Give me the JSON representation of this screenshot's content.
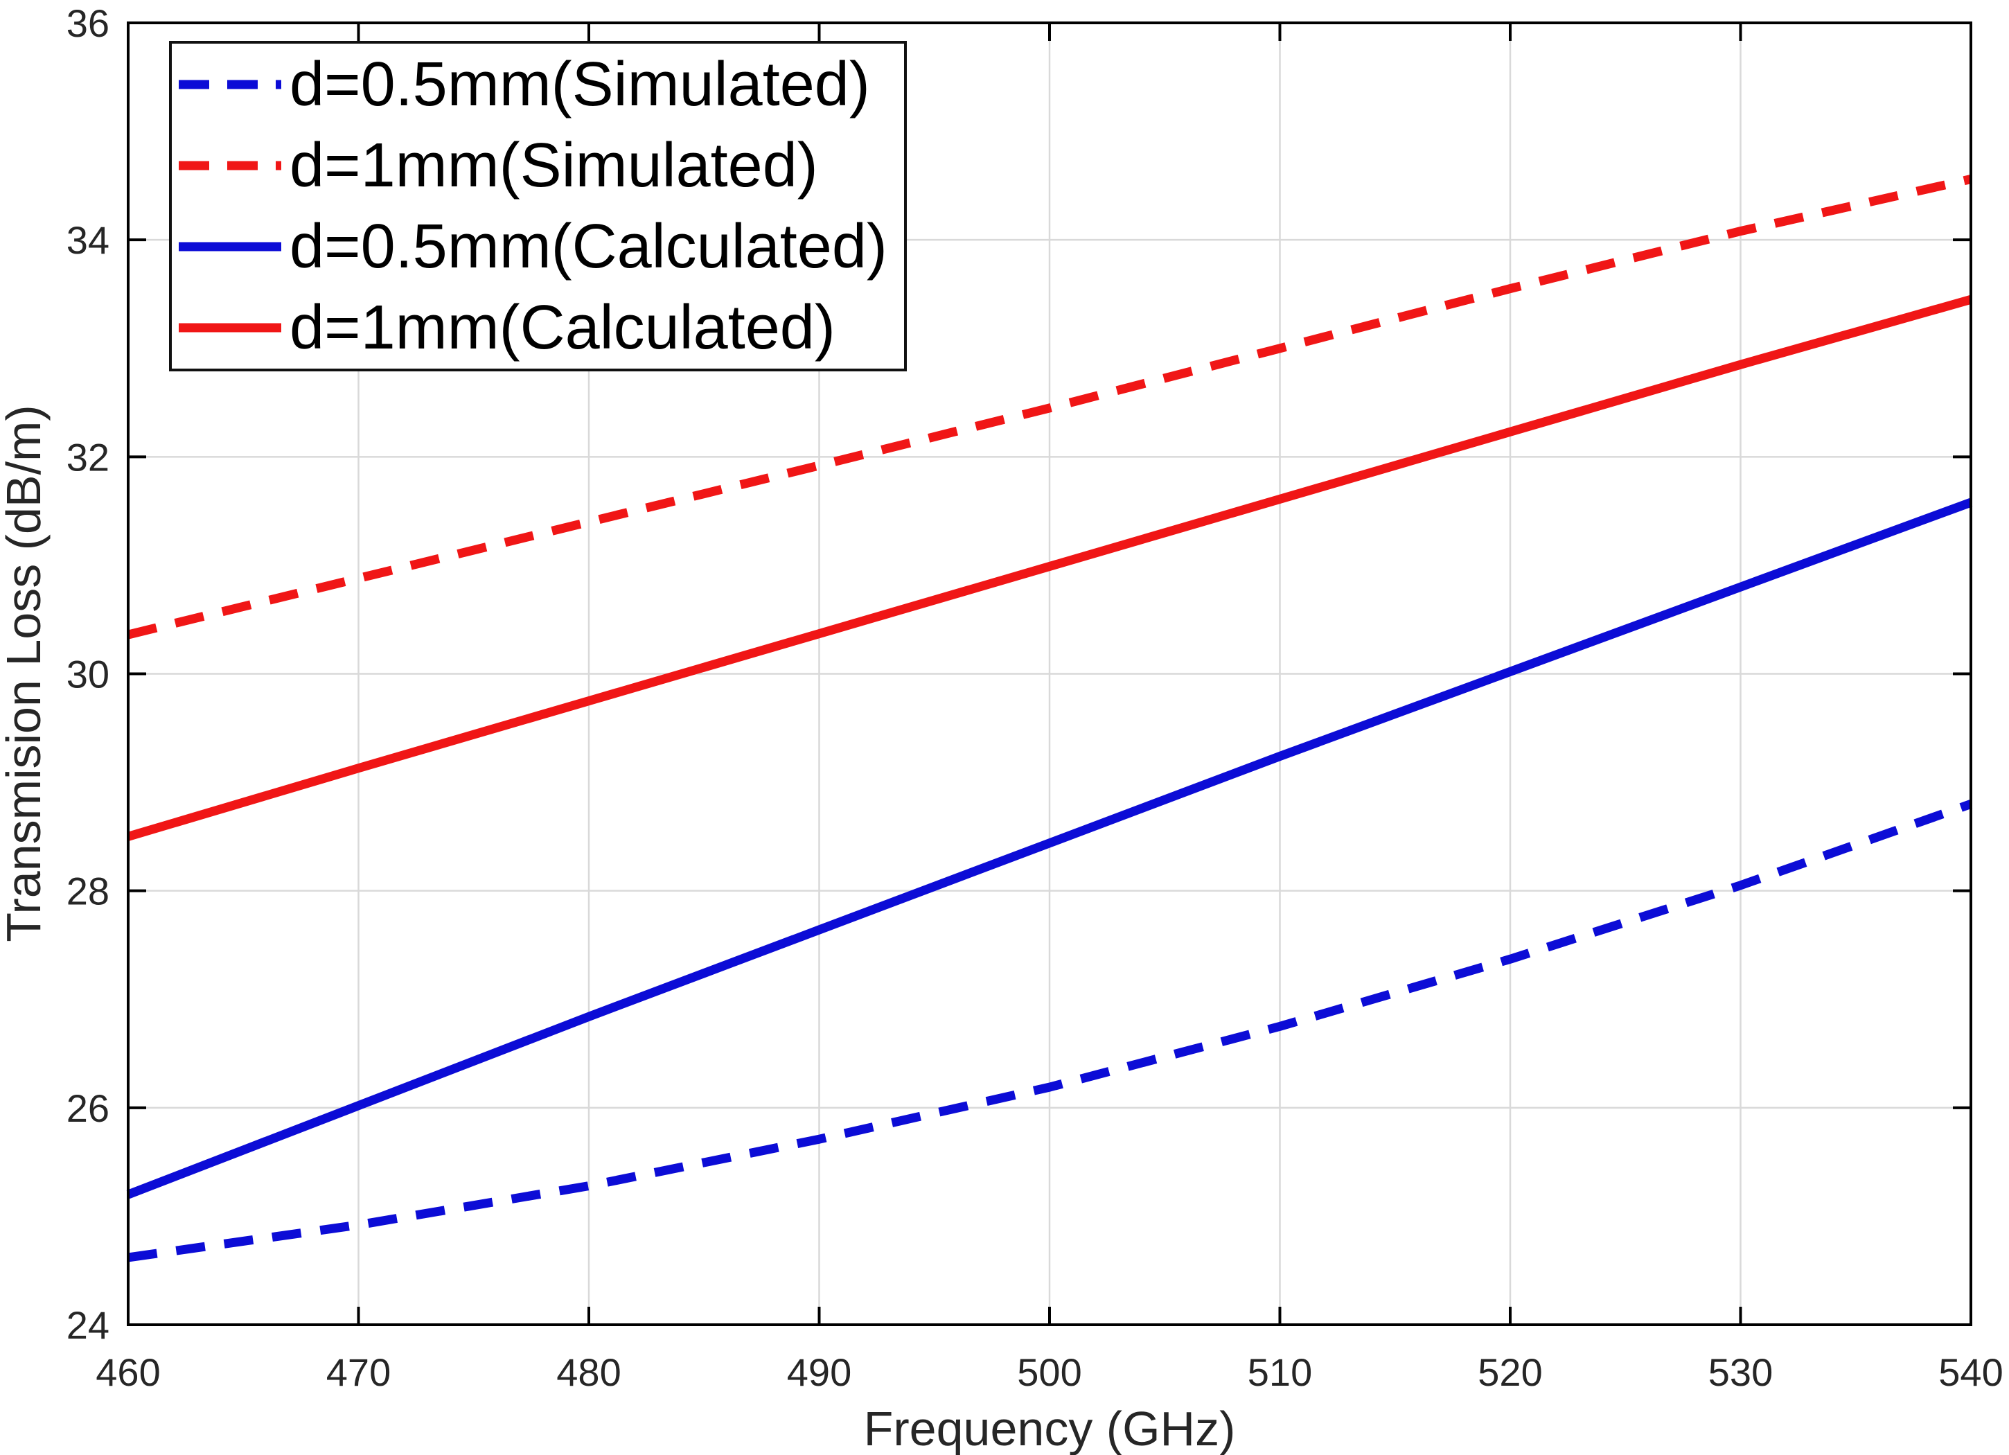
{
  "chart_data": {
    "type": "line",
    "title": "",
    "xlabel": "Frequency (GHz)",
    "ylabel": "Transmision Loss (dB/m)",
    "xlim": [
      460,
      540
    ],
    "ylim": [
      24,
      36
    ],
    "xticks": [
      460,
      470,
      480,
      490,
      500,
      510,
      520,
      530,
      540
    ],
    "yticks": [
      24,
      26,
      28,
      30,
      32,
      34,
      36
    ],
    "grid": true,
    "legend_position": "top-left",
    "x": [
      460,
      470,
      480,
      490,
      500,
      510,
      520,
      530,
      540
    ],
    "series": [
      {
        "name": "d=0.5mm(Simulated)",
        "color": "#0c0cd6",
        "style": "dashed",
        "values": [
          24.62,
          24.92,
          25.28,
          25.71,
          26.19,
          26.75,
          27.37,
          28.05,
          28.8
        ]
      },
      {
        "name": "d=1mm(Simulated)",
        "color": "#f01616",
        "style": "dashed",
        "values": [
          30.36,
          30.88,
          31.4,
          31.92,
          32.45,
          33.0,
          33.55,
          34.08,
          34.56
        ]
      },
      {
        "name": "d=0.5mm(Calculated)",
        "color": "#0c0cd6",
        "style": "solid",
        "values": [
          25.2,
          26.02,
          26.84,
          27.64,
          28.44,
          29.24,
          30.02,
          30.8,
          31.58
        ]
      },
      {
        "name": "d=1mm(Calculated)",
        "color": "#f01616",
        "style": "solid",
        "values": [
          28.5,
          29.13,
          29.75,
          30.37,
          30.99,
          31.61,
          32.23,
          32.85,
          33.45
        ]
      }
    ]
  }
}
